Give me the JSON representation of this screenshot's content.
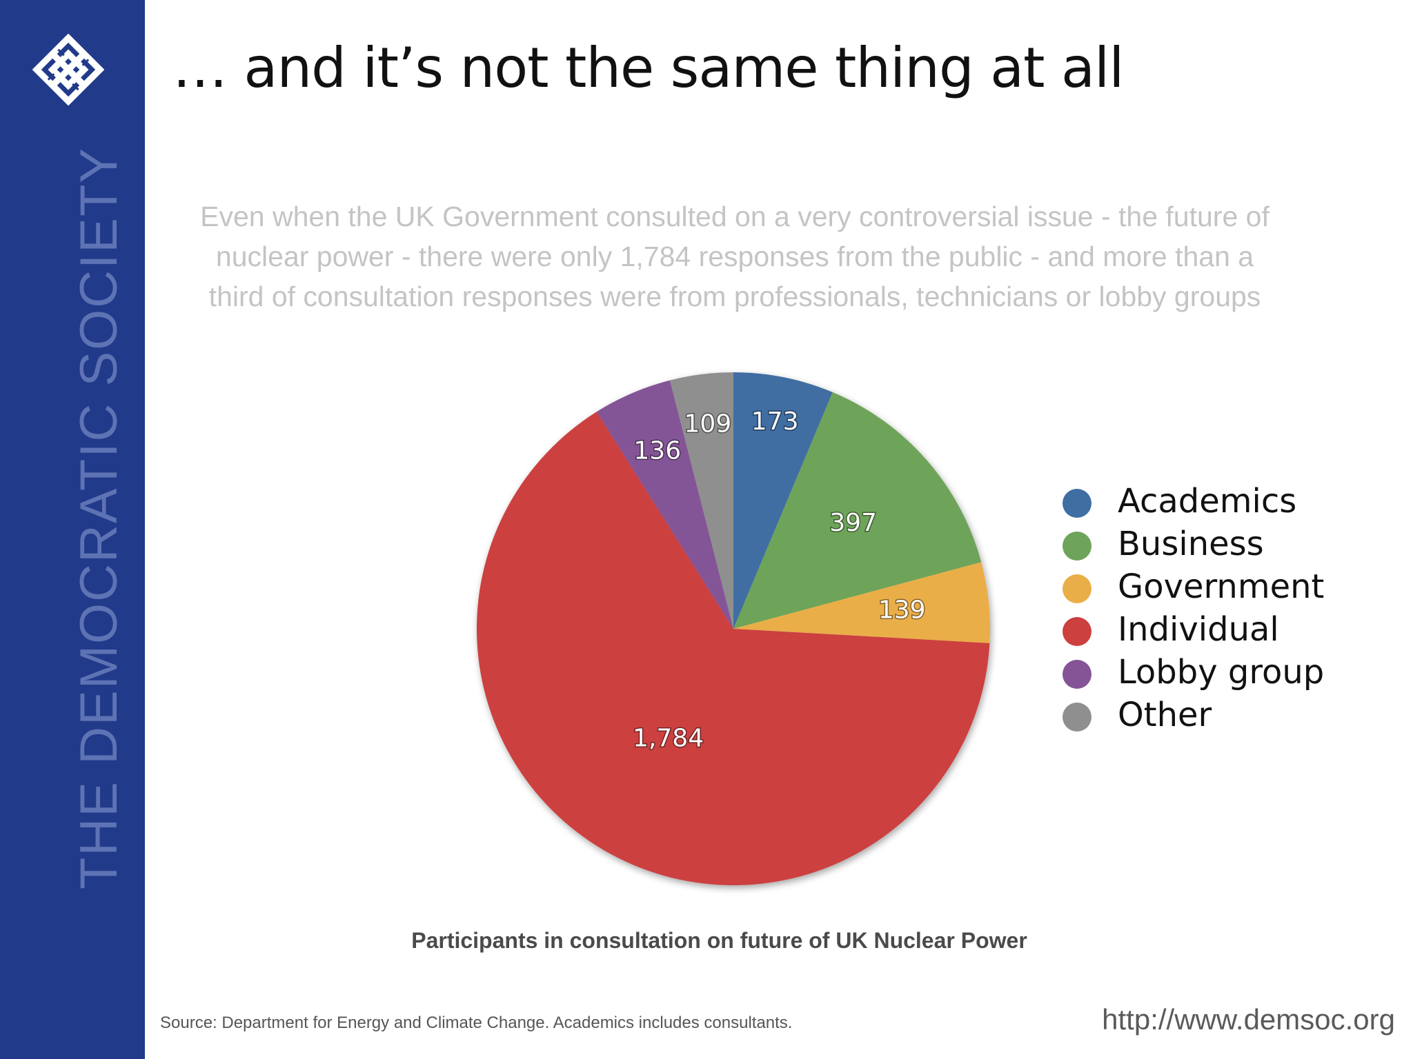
{
  "sidebar": {
    "org_name": "THE DEMOCRATIC SOCIETY",
    "logo_icon": "woven-diamond-logo-icon"
  },
  "title": "… and it’s not the same thing at all",
  "intro": "Even when the UK Government consulted on a very controversial issue - the future of nuclear power - there were only 1,784 responses from the public - and more than a third of consultation responses were from professionals, technicians or lobby groups",
  "chart_data": {
    "type": "pie",
    "title": "Participants in consultation on future of UK Nuclear Power",
    "legend_position": "right",
    "slices": [
      {
        "label": "Academics",
        "value": 173,
        "display": "173",
        "color": "#3f6ea3"
      },
      {
        "label": "Business",
        "value": 397,
        "display": "397",
        "color": "#6ea45a"
      },
      {
        "label": "Government",
        "value": 139,
        "display": "139",
        "color": "#eaae48"
      },
      {
        "label": "Individual",
        "value": 1784,
        "display": "1,784",
        "color": "#cc4040"
      },
      {
        "label": "Lobby group",
        "value": 136,
        "display": "136",
        "color": "#845496"
      },
      {
        "label": "Other",
        "value": 109,
        "display": "109",
        "color": "#8f8f8f"
      }
    ]
  },
  "footer": {
    "source": "Source: Department for Energy and Climate Change. Academics includes consultants.",
    "url": "http://www.demsoc.org"
  }
}
